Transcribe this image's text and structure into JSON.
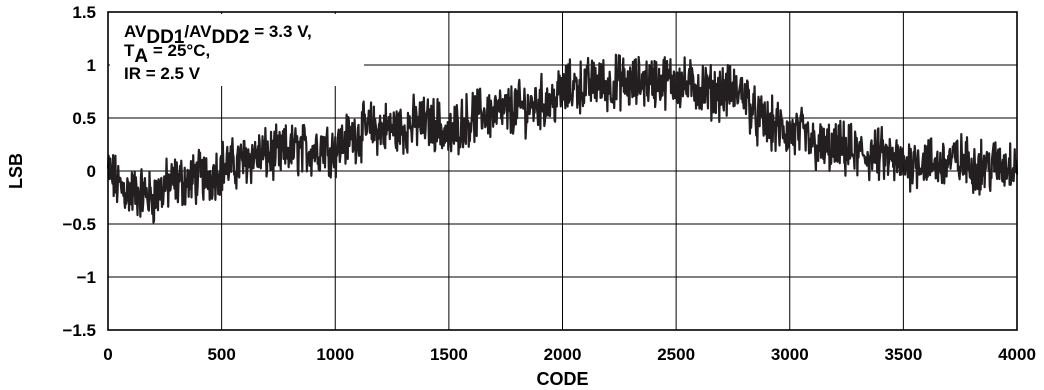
{
  "chart_data": {
    "type": "line",
    "title": "",
    "xlabel": "CODE",
    "ylabel": "LSB",
    "xlim": [
      0,
      4000
    ],
    "ylim": [
      -1.5,
      1.5
    ],
    "x_ticks": [
      0,
      500,
      1000,
      1500,
      2000,
      2500,
      3000,
      3500,
      4000
    ],
    "x_tick_labels": [
      "0",
      "500",
      "1000",
      "1500",
      "2000",
      "2500",
      "3000",
      "3500",
      "4000"
    ],
    "y_ticks": [
      1.5,
      1,
      0.5,
      0,
      -0.5,
      -1,
      -1.5
    ],
    "y_tick_labels": [
      "1.5",
      "1",
      "0.5",
      "0",
      "−0.5",
      "−1",
      "−1.5"
    ],
    "grid": true,
    "line_color": "#231f20",
    "annotation": {
      "line1_main": "AV",
      "line1_sub1": "DD1",
      "line1_mid": "/AV",
      "line1_sub2": "DD2",
      "line1_tail": " = 3.3 V,",
      "line2_main": "T",
      "line2_sub": "A",
      "line2_tail": " = 25°C,",
      "line3": "IR = 2.5 V"
    },
    "series": [
      {
        "x": [
          0,
          50,
          100,
          150,
          200,
          250,
          300,
          350,
          400,
          450,
          500,
          550,
          600,
          650,
          700,
          750,
          800,
          850,
          900,
          950,
          1000,
          1050,
          1100,
          1150,
          1200,
          1250,
          1300,
          1350,
          1400,
          1450,
          1500,
          1550,
          1600,
          1650,
          1700,
          1750,
          1800,
          1850,
          1900,
          1950,
          2000,
          2050,
          2100,
          2150,
          2200,
          2250,
          2300,
          2350,
          2400,
          2450,
          2500,
          2550,
          2600,
          2650,
          2700,
          2750,
          2800,
          2850,
          2900,
          2950,
          3000,
          3050,
          3100,
          3150,
          3200,
          3250,
          3300,
          3350,
          3400,
          3450,
          3500,
          3550,
          3600,
          3650,
          3700,
          3750,
          3800,
          3850,
          3900,
          3950,
          4000
        ],
        "y": [
          0.0,
          -0.15,
          -0.2,
          -0.2,
          -0.25,
          -0.15,
          -0.1,
          -0.1,
          -0.05,
          -0.05,
          0.05,
          0.05,
          0.1,
          0.15,
          0.15,
          0.15,
          0.2,
          0.2,
          0.2,
          0.25,
          0.2,
          0.3,
          0.35,
          0.4,
          0.4,
          0.4,
          0.4,
          0.45,
          0.45,
          0.45,
          0.3,
          0.45,
          0.5,
          0.55,
          0.55,
          0.55,
          0.6,
          0.6,
          0.65,
          0.65,
          0.75,
          0.8,
          0.8,
          0.85,
          0.8,
          0.85,
          0.8,
          0.85,
          0.85,
          0.85,
          0.85,
          0.8,
          0.8,
          0.75,
          0.75,
          0.75,
          0.75,
          0.5,
          0.45,
          0.4,
          0.35,
          0.35,
          0.25,
          0.2,
          0.2,
          0.2,
          0.15,
          0.15,
          0.15,
          0.1,
          0.05,
          0.1,
          0.1,
          0.05,
          0.1,
          0.1,
          0.05,
          0.05,
          0.05,
          0.05,
          0.1
        ],
        "noise_amplitude": 0.2,
        "samples": 1600
      }
    ]
  }
}
